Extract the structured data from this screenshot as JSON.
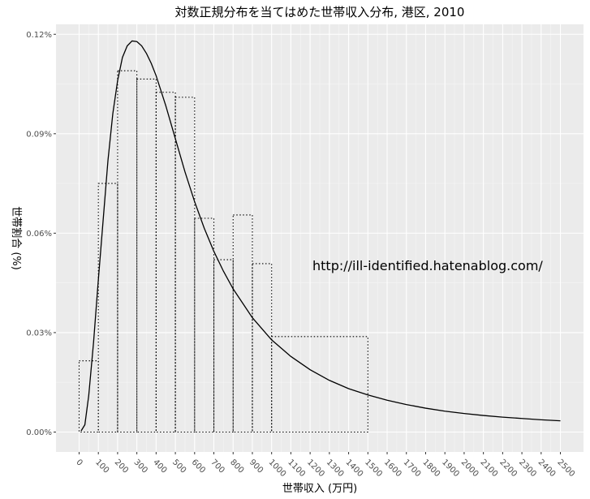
{
  "chart_data": {
    "type": "histogram-with-density",
    "title": "対数正規分布を当てはめた世帯収入分布, 港区, 2010",
    "xlabel": "世帯収入 (万円)",
    "ylabel": "世帯割合 (%)",
    "xlim": [
      -120,
      2620
    ],
    "ylim": [
      -6e-05,
      0.00123
    ],
    "x_ticks": [
      0,
      100,
      200,
      300,
      400,
      500,
      600,
      700,
      800,
      900,
      1000,
      1100,
      1200,
      1300,
      1400,
      1500,
      1600,
      1700,
      1800,
      1900,
      2000,
      2100,
      2200,
      2300,
      2400,
      2500
    ],
    "x_tick_labels": [
      "0",
      "100",
      "200",
      "300",
      "400",
      "500",
      "600",
      "700",
      "800",
      "900",
      "1000",
      "1100",
      "1200",
      "1300",
      "1400",
      "1500",
      "1600",
      "1700",
      "1800",
      "1900",
      "2000",
      "2100",
      "2200",
      "2300",
      "2400",
      "2500"
    ],
    "y_ticks": [
      0,
      0.0003,
      0.0006,
      0.0009,
      0.0012
    ],
    "y_tick_labels": [
      "0.00%",
      "0.03%",
      "0.06%",
      "0.09%",
      "0.12%"
    ],
    "histogram": {
      "style": "dotted",
      "bins": [
        {
          "x0": 0,
          "x1": 100,
          "density": 0.000215
        },
        {
          "x0": 100,
          "x1": 200,
          "density": 0.00075
        },
        {
          "x0": 200,
          "x1": 300,
          "density": 0.00109
        },
        {
          "x0": 300,
          "x1": 400,
          "density": 0.001065
        },
        {
          "x0": 400,
          "x1": 500,
          "density": 0.001025
        },
        {
          "x0": 500,
          "x1": 600,
          "density": 0.00101
        },
        {
          "x0": 600,
          "x1": 700,
          "density": 0.000645
        },
        {
          "x0": 700,
          "x1": 800,
          "density": 0.00052
        },
        {
          "x0": 800,
          "x1": 900,
          "density": 0.000655
        },
        {
          "x0": 900,
          "x1": 1000,
          "density": 0.000508
        },
        {
          "x0": 1000,
          "x1": 1500,
          "density": 0.000288
        },
        {
          "x0": 1500,
          "x1": 2620,
          "density": 0.0
        }
      ]
    },
    "density_curve": {
      "distribution": "lognormal",
      "style": "solid",
      "x": [
        10,
        30,
        50,
        75,
        100,
        125,
        150,
        175,
        200,
        225,
        250,
        275,
        300,
        325,
        350,
        375,
        400,
        450,
        500,
        550,
        600,
        650,
        700,
        750,
        800,
        900,
        1000,
        1100,
        1200,
        1300,
        1400,
        1500,
        1600,
        1700,
        1800,
        1900,
        2000,
        2100,
        2200,
        2300,
        2400,
        2500
      ],
      "y": [
        3e-06,
        2.2e-05,
        0.00011,
        0.00027,
        0.00046,
        0.00064,
        0.00082,
        0.00096,
        0.00106,
        0.00113,
        0.001165,
        0.00118,
        0.001178,
        0.001165,
        0.001142,
        0.001112,
        0.001075,
        0.000985,
        0.000885,
        0.000785,
        0.000695,
        0.000615,
        0.000545,
        0.000485,
        0.000432,
        0.000345,
        0.000278,
        0.000228,
        0.000188,
        0.000156,
        0.000131,
        0.000112,
        9.6e-05,
        8.3e-05,
        7.2e-05,
        6.3e-05,
        5.6e-05,
        5e-05,
        4.5e-05,
        4.1e-05,
        3.7e-05,
        3.4e-05
      ]
    },
    "annotation": "http://ill-identified.hatenablog.com/",
    "grid": true,
    "legend": "none"
  }
}
